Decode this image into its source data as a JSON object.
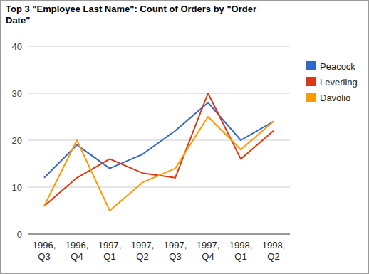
{
  "chart_data": {
    "type": "line",
    "title": "Top 3 \"Employee Last Name\": Count of Orders by \"Order Date\"",
    "categories": [
      "1996, Q3",
      "1996, Q4",
      "1997, Q1",
      "1997, Q2",
      "1997, Q3",
      "1997, Q4",
      "1998, Q1",
      "1998, Q2"
    ],
    "series": [
      {
        "name": "Peacock",
        "color": "#3366cc",
        "values": [
          12,
          19,
          14,
          17,
          22,
          28,
          20,
          24
        ]
      },
      {
        "name": "Leverling",
        "color": "#dc3912",
        "values": [
          6,
          12,
          16,
          13,
          12,
          30,
          16,
          22
        ]
      },
      {
        "name": "Davolio",
        "color": "#ff9900",
        "values": [
          6,
          20,
          5,
          11,
          14,
          25,
          18,
          24
        ]
      }
    ],
    "ylim": [
      0,
      40
    ],
    "yticks": [
      0,
      10,
      20,
      30,
      40
    ],
    "grid": true,
    "legend": "right"
  }
}
